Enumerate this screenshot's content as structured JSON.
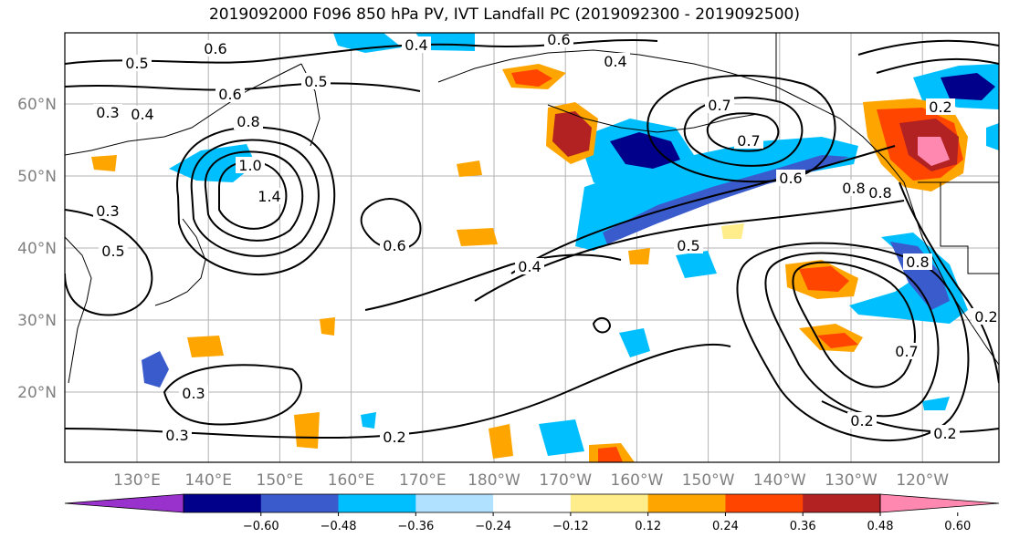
{
  "title": "2019092000 F096 850 hPa PV, IVT Landfall PC (2019092300 - 2019092500)",
  "map": {
    "lat_labels": [
      "60°N",
      "50°N",
      "40°N",
      "30°N",
      "20°N"
    ],
    "lon_labels": [
      "130°E",
      "140°E",
      "150°E",
      "160°E",
      "170°E",
      "180°W",
      "170°W",
      "160°W",
      "150°W",
      "140°W",
      "130°W",
      "120°W"
    ],
    "contour_labels": [
      "0.6",
      "0.4",
      "0.5",
      "0.5",
      "0.6",
      "0.4",
      "0.3",
      "0.4",
      "0.8",
      "0.7",
      "1.0",
      "1.4",
      "0.3",
      "0.6",
      "0.5",
      "0.4",
      "0.5",
      "0.6",
      "0.7",
      "0.6",
      "0.8",
      "0.8",
      "0.8",
      "0.2",
      "0.3",
      "0.3",
      "0.2",
      "0.2",
      "0.7",
      "0.2",
      "0.2"
    ]
  },
  "colorbar": {
    "ticks": [
      "−0.60",
      "−0.48",
      "−0.36",
      "−0.24",
      "−0.12",
      "0.12",
      "0.24",
      "0.36",
      "0.48",
      "0.60"
    ],
    "colors": [
      "#9932cc",
      "#00008b",
      "#3a5bcc",
      "#00bfff",
      "#b0e2ff",
      "#ffffff",
      "#ffec8b",
      "#ffa500",
      "#ff4500",
      "#b22222",
      "#ff88b0"
    ]
  }
}
